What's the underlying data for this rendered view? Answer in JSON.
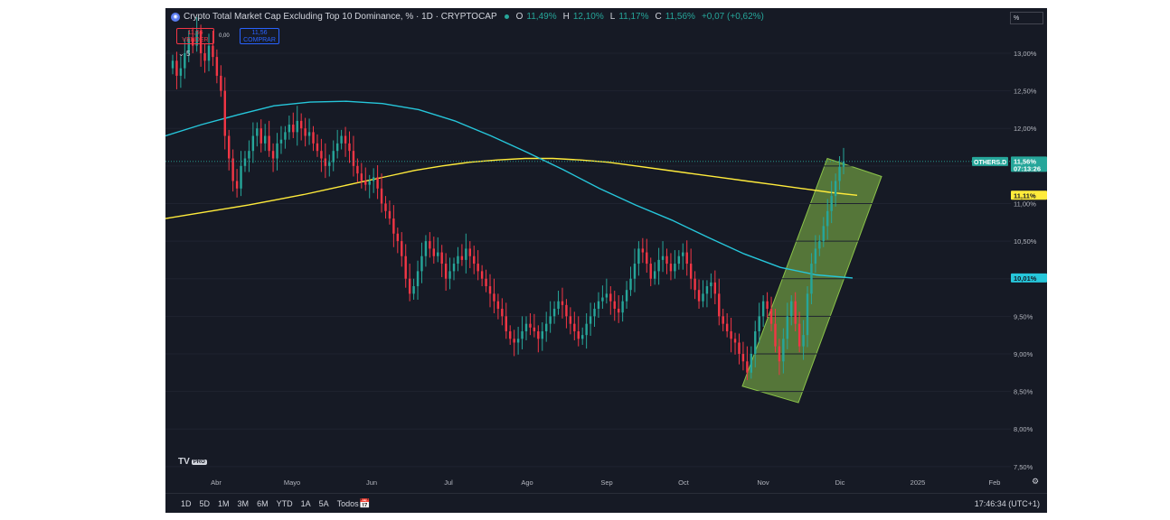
{
  "legend": {
    "title": "Crypto Total Market Cap Excluding Top 10 Dominance, % · 1D · CRYPTOCAP",
    "o_label": "O",
    "o_value": "11,49%",
    "h_label": "H",
    "h_value": "12,10%",
    "l_label": "L",
    "l_value": "11,17%",
    "c_label": "C",
    "c_value": "11,56%",
    "change": "+0,07 (+0,62%)"
  },
  "trade": {
    "sell_price": "11,56",
    "sell_label": "VENDER",
    "spread": "0,00",
    "buy_price": "11,56",
    "buy_label": "COMPRAR",
    "collapse": "5"
  },
  "scale_mode": "%",
  "logo": {
    "text": "TV",
    "badge": "PRO"
  },
  "price_labels": {
    "symbol": "OTHERS.D",
    "last": "11,56%",
    "countdown": "07:13:26",
    "ma_yellow": "11,11%",
    "ma_cyan": "10,01%"
  },
  "bottom": {
    "ranges": [
      "1D",
      "5D",
      "1M",
      "3M",
      "6M",
      "YTD",
      "1A",
      "5A",
      "Todos"
    ],
    "time": "17:46:34 (UTC+1)"
  },
  "colors": {
    "up": "#26a69a",
    "down": "#f23645",
    "ma200": "#ffeb3b",
    "ma_cyan": "#26c6da",
    "channel_fill": "rgba(139,195,74,0.55)",
    "channel_edge": "#8bc34a"
  },
  "chart_data": {
    "type": "candlestick",
    "y_unit": "%",
    "y_ticks": [
      "7,50%",
      "8,00%",
      "8,50%",
      "9,00%",
      "9,50%",
      "10,00%",
      "10,50%",
      "11,00%",
      "11,50%",
      "12,00%",
      "12,50%",
      "13,00%"
    ],
    "x_ticks": [
      "Abr",
      "Mayo",
      "Jun",
      "Jul",
      "Ago",
      "Sep",
      "Oct",
      "Nov",
      "Dic",
      "2025",
      "Feb"
    ],
    "ylim": [
      7.45,
      13.6
    ],
    "last_close": 11.56,
    "closes": [
      12.9,
      12.7,
      12.8,
      13.0,
      13.2,
      13.1,
      13.3,
      13.0,
      12.9,
      13.1,
      12.95,
      12.7,
      12.5,
      11.9,
      11.6,
      11.3,
      11.2,
      11.5,
      11.6,
      11.7,
      11.9,
      12.0,
      11.8,
      11.9,
      11.7,
      11.6,
      11.8,
      11.85,
      11.95,
      12.05,
      11.95,
      12.1,
      12.0,
      11.9,
      11.95,
      11.8,
      11.7,
      11.6,
      11.5,
      11.55,
      11.7,
      11.8,
      11.9,
      11.8,
      11.7,
      11.5,
      11.4,
      11.3,
      11.25,
      11.3,
      11.35,
      11.2,
      11.0,
      10.9,
      10.8,
      10.6,
      10.5,
      10.3,
      10.0,
      9.8,
      9.9,
      10.1,
      10.3,
      10.5,
      10.4,
      10.3,
      10.35,
      10.2,
      10.0,
      10.1,
      10.2,
      10.3,
      10.25,
      10.4,
      10.3,
      10.2,
      10.1,
      10.0,
      9.9,
      9.8,
      9.7,
      9.6,
      9.5,
      9.3,
      9.2,
      9.15,
      9.2,
      9.3,
      9.4,
      9.35,
      9.3,
      9.2,
      9.3,
      9.4,
      9.5,
      9.6,
      9.7,
      9.65,
      9.5,
      9.4,
      9.3,
      9.2,
      9.25,
      9.4,
      9.5,
      9.6,
      9.7,
      9.75,
      9.8,
      9.7,
      9.6,
      9.55,
      9.7,
      9.85,
      10.0,
      10.2,
      10.4,
      10.35,
      10.2,
      10.0,
      10.1,
      10.25,
      10.3,
      10.2,
      10.1,
      10.2,
      10.3,
      10.35,
      10.2,
      10.0,
      9.85,
      9.7,
      9.8,
      9.9,
      9.95,
      9.8,
      9.5,
      9.4,
      9.3,
      9.2,
      9.15,
      9.0,
      8.9,
      8.75,
      9.0,
      9.3,
      9.5,
      9.7,
      9.6,
      9.4,
      9.1,
      8.9,
      9.2,
      9.5,
      9.7,
      9.4,
      9.1,
      9.25,
      9.8,
      10.2,
      10.4,
      10.5,
      10.7,
      10.9,
      11.1,
      11.3,
      11.49,
      11.56
    ],
    "opens": [
      12.8,
      12.9,
      12.7,
      12.8,
      13.0,
      13.2,
      13.1,
      13.3,
      13.0,
      12.9,
      13.1,
      12.95,
      12.7,
      12.5,
      11.9,
      11.6,
      11.3,
      11.2,
      11.5,
      11.6,
      11.7,
      11.9,
      12.0,
      11.8,
      11.9,
      11.7,
      11.6,
      11.8,
      11.85,
      11.95,
      12.05,
      11.95,
      12.1,
      12.0,
      11.9,
      11.95,
      11.8,
      11.7,
      11.6,
      11.5,
      11.55,
      11.7,
      11.8,
      11.9,
      11.8,
      11.7,
      11.5,
      11.4,
      11.3,
      11.25,
      11.3,
      11.35,
      11.2,
      11.0,
      10.9,
      10.8,
      10.6,
      10.5,
      10.3,
      10.0,
      9.8,
      9.9,
      10.1,
      10.3,
      10.5,
      10.4,
      10.3,
      10.35,
      10.2,
      10.0,
      10.1,
      10.2,
      10.3,
      10.25,
      10.4,
      10.3,
      10.2,
      10.1,
      10.0,
      9.9,
      9.8,
      9.7,
      9.6,
      9.5,
      9.3,
      9.2,
      9.15,
      9.2,
      9.3,
      9.4,
      9.35,
      9.3,
      9.2,
      9.3,
      9.4,
      9.5,
      9.6,
      9.7,
      9.65,
      9.5,
      9.4,
      9.3,
      9.2,
      9.25,
      9.4,
      9.5,
      9.6,
      9.7,
      9.75,
      9.8,
      9.7,
      9.6,
      9.55,
      9.7,
      9.85,
      10.0,
      10.2,
      10.4,
      10.35,
      10.2,
      10.0,
      10.1,
      10.25,
      10.3,
      10.2,
      10.1,
      10.2,
      10.3,
      10.35,
      10.2,
      10.0,
      9.85,
      9.7,
      9.8,
      9.9,
      9.95,
      9.8,
      9.5,
      9.4,
      9.3,
      9.2,
      9.15,
      9.0,
      8.9,
      8.75,
      9.0,
      9.3,
      9.5,
      9.7,
      9.6,
      9.4,
      9.1,
      8.9,
      9.2,
      9.5,
      9.7,
      9.4,
      9.1,
      9.25,
      9.8,
      10.2,
      10.4,
      10.5,
      10.7,
      10.9,
      11.1,
      11.3,
      11.49
    ],
    "series": [
      {
        "values_ma_yellow": [
          10.8,
          10.86,
          10.92,
          10.98,
          11.05,
          11.12,
          11.2,
          11.28,
          11.36,
          11.44,
          11.5,
          11.55,
          11.58,
          11.6,
          11.6,
          11.58,
          11.55,
          11.5,
          11.45,
          11.4,
          11.35,
          11.3,
          11.25,
          11.2,
          11.15,
          11.11
        ]
      },
      {
        "values_ma_cyan": [
          11.9,
          12.05,
          12.18,
          12.3,
          12.35,
          12.36,
          12.33,
          12.25,
          12.1,
          11.9,
          11.68,
          11.45,
          11.2,
          10.98,
          10.78,
          10.55,
          10.33,
          10.15,
          10.05,
          10.01
        ]
      }
    ]
  }
}
